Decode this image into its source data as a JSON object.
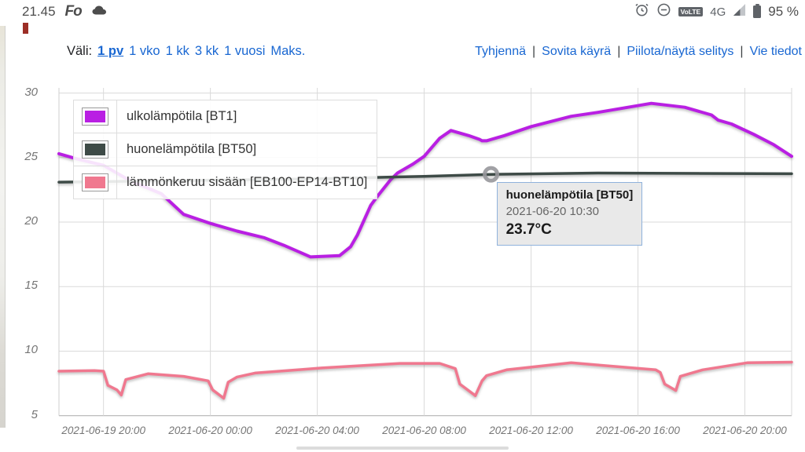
{
  "status_bar": {
    "time": "21.45",
    "app_logo": "Fo",
    "volte_badge": "VoLTE",
    "network": "4G",
    "battery": "95 %"
  },
  "toolbar": {
    "range_label": "Väli:",
    "ranges": [
      {
        "label": "1 pv",
        "selected": true
      },
      {
        "label": "1 vko",
        "selected": false
      },
      {
        "label": "1 kk",
        "selected": false
      },
      {
        "label": "3 kk",
        "selected": false
      },
      {
        "label": "1 vuosi",
        "selected": false
      },
      {
        "label": "Maks.",
        "selected": false
      }
    ],
    "separator": "|",
    "actions": [
      "Tyhjennä",
      "Sovita käyrä",
      "Piilota/näytä selitys",
      "Vie tiedot"
    ]
  },
  "colors": {
    "link_blue": "#1967D2",
    "grid": "#DADADA",
    "axis_text": "#757575",
    "tooltip_bg": "#E9E9E9",
    "tooltip_border": "#8FB2DC"
  },
  "chart_data": {
    "type": "line",
    "xlabel": "",
    "ylabel": "",
    "xlim": [
      "2021-06-19 18:20",
      "2021-06-20 21:45"
    ],
    "ylim": [
      4.8,
      30.4
    ],
    "grid": true,
    "x_ticks": [
      {
        "t": "2021-06-19 20:00",
        "label": "2021-06-19 20:00"
      },
      {
        "t": "2021-06-20 00:00",
        "label": "2021-06-20 00:00"
      },
      {
        "t": "2021-06-20 04:00",
        "label": "2021-06-20 04:00"
      },
      {
        "t": "2021-06-20 08:00",
        "label": "2021-06-20 08:00"
      },
      {
        "t": "2021-06-20 12:00",
        "label": "2021-06-20 12:00"
      },
      {
        "t": "2021-06-20 16:00",
        "label": "2021-06-20 16:00"
      },
      {
        "t": "2021-06-20 20:00",
        "label": "2021-06-20 20:00"
      }
    ],
    "y_ticks": [
      30,
      25,
      20,
      15,
      10,
      5
    ],
    "series": [
      {
        "label": "ulkolämpötila [BT1]",
        "color": "#B91FE3",
        "points": [
          [
            "2021-06-19 18:20",
            25.3
          ],
          [
            "2021-06-19 19:00",
            24.9
          ],
          [
            "2021-06-19 20:00",
            24.4
          ],
          [
            "2021-06-19 21:00",
            23.2
          ],
          [
            "2021-06-19 22:10",
            22.2
          ],
          [
            "2021-06-19 23:00",
            20.6
          ],
          [
            "2021-06-20 00:00",
            19.9
          ],
          [
            "2021-06-20 01:00",
            19.3
          ],
          [
            "2021-06-20 02:00",
            18.8
          ],
          [
            "2021-06-20 02:45",
            18.2
          ],
          [
            "2021-06-20 03:45",
            17.3
          ],
          [
            "2021-06-20 04:50",
            17.4
          ],
          [
            "2021-06-20 05:15",
            18.1
          ],
          [
            "2021-06-20 05:30",
            19.0
          ],
          [
            "2021-06-20 06:00",
            21.3
          ],
          [
            "2021-06-20 06:15",
            22.0
          ],
          [
            "2021-06-20 06:45",
            23.3
          ],
          [
            "2021-06-20 07:00",
            23.8
          ],
          [
            "2021-06-20 07:35",
            24.5
          ],
          [
            "2021-06-20 08:00",
            25.1
          ],
          [
            "2021-06-20 08:35",
            26.5
          ],
          [
            "2021-06-20 09:00",
            27.1
          ],
          [
            "2021-06-20 09:40",
            26.7
          ],
          [
            "2021-06-20 10:05",
            26.4
          ],
          [
            "2021-06-20 10:10",
            26.3
          ],
          [
            "2021-06-20 10:20",
            26.3
          ],
          [
            "2021-06-20 11:00",
            26.7
          ],
          [
            "2021-06-20 12:00",
            27.4
          ],
          [
            "2021-06-20 13:30",
            28.2
          ],
          [
            "2021-06-20 14:30",
            28.5
          ],
          [
            "2021-06-20 16:30",
            29.2
          ],
          [
            "2021-06-20 17:45",
            28.9
          ],
          [
            "2021-06-20 18:45",
            28.3
          ],
          [
            "2021-06-20 19:00",
            27.9
          ],
          [
            "2021-06-20 19:30",
            27.6
          ],
          [
            "2021-06-20 20:20",
            26.8
          ],
          [
            "2021-06-20 21:05",
            26.0
          ],
          [
            "2021-06-20 21:45",
            25.1
          ]
        ]
      },
      {
        "label": "huonelämpötila [BT50]",
        "color": "#3E4B47",
        "points": [
          [
            "2021-06-19 18:20",
            23.1
          ],
          [
            "2021-06-20 00:00",
            23.25
          ],
          [
            "2021-06-20 04:00",
            23.35
          ],
          [
            "2021-06-20 08:00",
            23.55
          ],
          [
            "2021-06-20 10:30",
            23.7
          ],
          [
            "2021-06-20 14:30",
            23.8
          ],
          [
            "2021-06-20 21:45",
            23.75
          ]
        ]
      },
      {
        "label": "lämmönkeruu sisään [EB100-EP14-BT10]",
        "color": "#F0788F",
        "points": [
          [
            "2021-06-19 18:20",
            8.45
          ],
          [
            "2021-06-19 19:40",
            8.5
          ],
          [
            "2021-06-19 20:00",
            8.45
          ],
          [
            "2021-06-19 20:10",
            7.35
          ],
          [
            "2021-06-19 20:30",
            7.0
          ],
          [
            "2021-06-19 20:40",
            6.6
          ],
          [
            "2021-06-19 20:50",
            7.8
          ],
          [
            "2021-06-19 21:40",
            8.25
          ],
          [
            "2021-06-19 23:00",
            8.05
          ],
          [
            "2021-06-19 23:55",
            7.7
          ],
          [
            "2021-06-20 00:05",
            7.0
          ],
          [
            "2021-06-20 00:30",
            6.35
          ],
          [
            "2021-06-20 00:40",
            7.6
          ],
          [
            "2021-06-20 01:00",
            8.0
          ],
          [
            "2021-06-20 01:40",
            8.3
          ],
          [
            "2021-06-20 04:10",
            8.7
          ],
          [
            "2021-06-20 07:05",
            9.05
          ],
          [
            "2021-06-20 08:35",
            9.05
          ],
          [
            "2021-06-20 09:10",
            8.65
          ],
          [
            "2021-06-20 09:20",
            7.45
          ],
          [
            "2021-06-20 09:55",
            6.55
          ],
          [
            "2021-06-20 10:10",
            7.7
          ],
          [
            "2021-06-20 10:20",
            8.1
          ],
          [
            "2021-06-20 11:05",
            8.55
          ],
          [
            "2021-06-20 13:30",
            9.1
          ],
          [
            "2021-06-20 16:40",
            8.55
          ],
          [
            "2021-06-20 16:50",
            8.35
          ],
          [
            "2021-06-20 17:00",
            7.45
          ],
          [
            "2021-06-20 17:25",
            6.95
          ],
          [
            "2021-06-20 17:35",
            8.05
          ],
          [
            "2021-06-20 18:25",
            8.55
          ],
          [
            "2021-06-20 20:05",
            9.1
          ],
          [
            "2021-06-20 21:45",
            9.15
          ]
        ]
      }
    ],
    "marker": {
      "t": "2021-06-20 10:30",
      "v": 23.7
    },
    "tooltip": {
      "title": "huonelämpötila [BT50]",
      "time": "2021-06-20 10:30",
      "value": "23.7°C"
    }
  }
}
